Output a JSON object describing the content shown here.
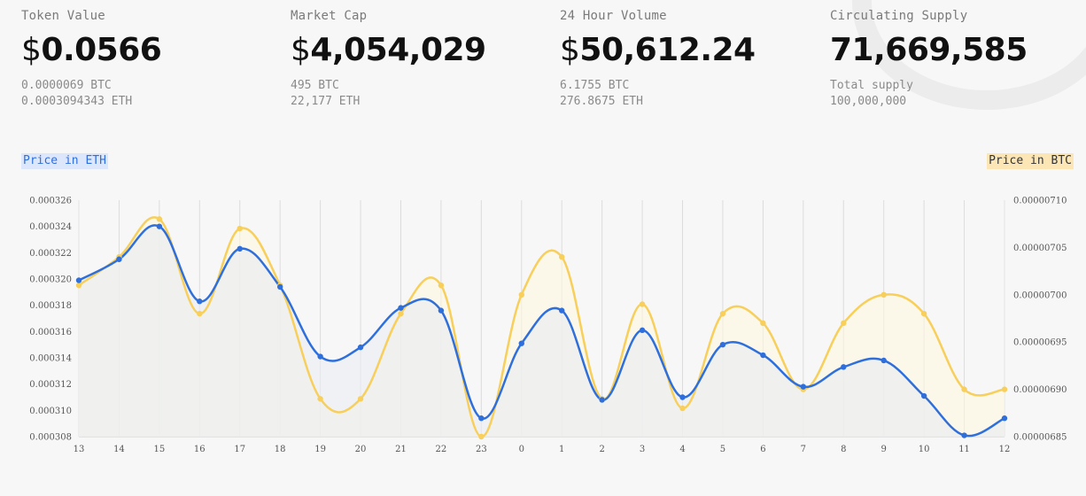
{
  "stats": [
    {
      "label": "Token Value",
      "symbol": "$",
      "number": "0.0566",
      "sub1": "0.0000069 BTC",
      "sub2": "0.0003094343 ETH"
    },
    {
      "label": "Market Cap",
      "symbol": "$",
      "number": "4,054,029",
      "sub1": "495 BTC",
      "sub2": "22,177 ETH"
    },
    {
      "label": "24 Hour Volume",
      "symbol": "$",
      "number": "50,612.24",
      "sub1": "6.1755 BTC",
      "sub2": "276.8675 ETH"
    },
    {
      "label": "Circulating Supply",
      "symbol": "",
      "number": "71,669,585",
      "sub1": "Total supply",
      "sub2": "100,000,000"
    }
  ],
  "legend": {
    "eth_label": "Price in ETH",
    "btc_label": "Price in BTC"
  },
  "colors": {
    "eth": "#2f6fdc",
    "btc": "#f7cf5a",
    "grid": "#dcdcdc"
  },
  "chart_data": {
    "type": "line",
    "x": [
      "13",
      "14",
      "15",
      "16",
      "17",
      "18",
      "19",
      "20",
      "21",
      "22",
      "23",
      "0",
      "1",
      "2",
      "3",
      "4",
      "5",
      "6",
      "7",
      "8",
      "9",
      "10",
      "11",
      "12"
    ],
    "series": [
      {
        "name": "Price in ETH",
        "axis": "left",
        "values": [
          0.0003199,
          0.0003215,
          0.000324,
          0.0003183,
          0.0003223,
          0.0003194,
          0.0003141,
          0.0003148,
          0.0003178,
          0.0003176,
          0.0003094,
          0.0003151,
          0.0003176,
          0.0003108,
          0.0003161,
          0.000311,
          0.000315,
          0.0003142,
          0.0003118,
          0.0003133,
          0.0003138,
          0.0003111,
          0.0003081,
          0.0003094
        ]
      },
      {
        "name": "Price in BTC",
        "axis": "right",
        "values": [
          7.01e-06,
          7.04e-06,
          7.08e-06,
          6.98e-06,
          7.07e-06,
          7.01e-06,
          6.89e-06,
          6.89e-06,
          6.98e-06,
          7.01e-06,
          6.85e-06,
          7e-06,
          7.04e-06,
          6.89e-06,
          6.99e-06,
          6.88e-06,
          6.98e-06,
          6.97e-06,
          6.9e-06,
          6.97e-06,
          7e-06,
          6.98e-06,
          6.9e-06,
          6.9e-06
        ]
      }
    ],
    "y_left": {
      "min": 0.000308,
      "max": 0.000326,
      "ticks": [
        "0.000308",
        "0.000310",
        "0.000312",
        "0.000314",
        "0.000316",
        "0.000318",
        "0.000320",
        "0.000322",
        "0.000324",
        "0.000326"
      ]
    },
    "y_right": {
      "min": 6.85e-06,
      "max": 7.1e-06,
      "ticks": [
        "0.00000685",
        "0.00000690",
        "0.00000695",
        "0.00000700",
        "0.00000705",
        "0.00000710"
      ]
    },
    "grid": "vertical",
    "area_fill": true
  }
}
